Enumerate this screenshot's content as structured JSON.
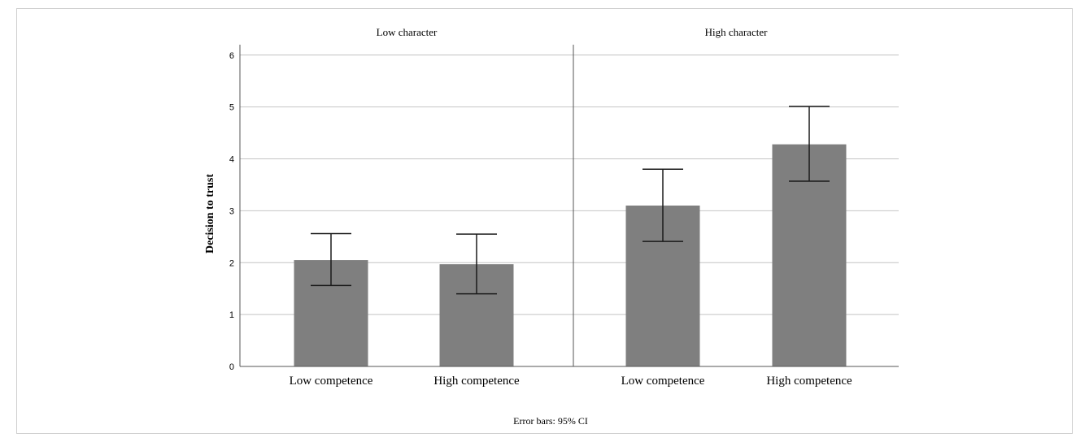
{
  "chart_data": {
    "type": "bar",
    "ylabel": "Decision to trust",
    "ylim": [
      0,
      6.2
    ],
    "yticks": [
      0,
      1,
      2,
      3,
      4,
      5,
      6
    ],
    "grid": true,
    "caption": "Error bars: 95% CI",
    "bar_color": "#7f7f7f",
    "panels": [
      {
        "title": "Low character",
        "categories": [
          "Low competence",
          "High competence"
        ],
        "values": [
          2.05,
          1.97
        ],
        "ci_low": [
          1.56,
          1.4
        ],
        "ci_high": [
          2.56,
          2.55
        ]
      },
      {
        "title": "High character",
        "categories": [
          "Low competence",
          "High competence"
        ],
        "values": [
          3.1,
          4.28
        ],
        "ci_low": [
          2.41,
          3.57
        ],
        "ci_high": [
          3.8,
          5.01
        ]
      }
    ]
  }
}
